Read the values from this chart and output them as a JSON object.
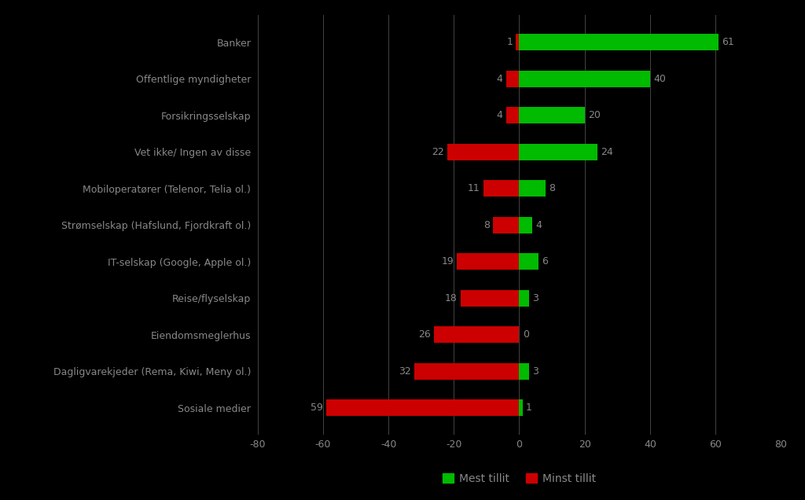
{
  "categories": [
    "Banker",
    "Offentlige myndigheter",
    "Forsikringsselskap",
    "Vet ikke/ Ingen av disse",
    "Mobiloperatører (Telenor, Telia ol.)",
    "Strømselskap (Hafslund, Fjordkraft ol.)",
    "IT-selskap (Google, Apple ol.)",
    "Reise/flyselskap",
    "Eiendomsmeglerhus",
    "Dagligvarekjeder (Rema, Kiwi, Meny ol.)",
    "Sosiale medier"
  ],
  "mest_tillit": [
    61,
    40,
    20,
    24,
    8,
    4,
    6,
    3,
    0,
    3,
    1
  ],
  "minst_tillit": [
    1,
    4,
    4,
    22,
    11,
    8,
    19,
    18,
    26,
    32,
    59
  ],
  "color_mest": "#00bb00",
  "color_minst": "#cc0000",
  "background_color": "#000000",
  "text_color": "#888888",
  "grid_color": "#444444",
  "label_color": "#888888",
  "xlim": [
    -80,
    80
  ],
  "xticks": [
    -80,
    -60,
    -40,
    -20,
    0,
    20,
    40,
    60,
    80
  ],
  "bar_height": 0.45,
  "legend_mest": "Mest tillit",
  "legend_minst": "Minst tillit",
  "category_fontsize": 9,
  "value_fontsize": 9,
  "tick_fontsize": 9
}
